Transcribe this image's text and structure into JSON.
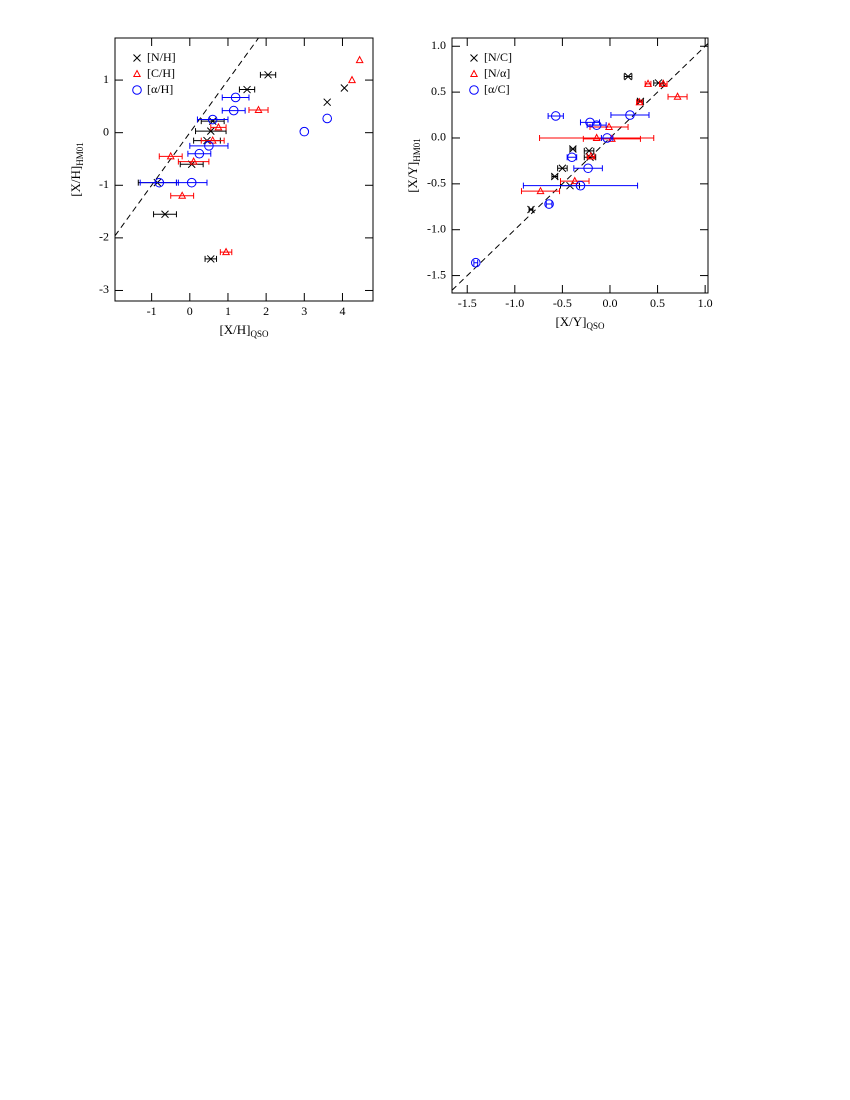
{
  "chart_data": [
    {
      "type": "scatter",
      "xlabel": "[X/H]",
      "xlabel_sub": "QSO",
      "ylabel": "[X/H]",
      "ylabel_sub": "HM01",
      "xlim": [
        -1.96,
        4.8
      ],
      "ylim": [
        -3.2,
        1.8
      ],
      "xticks": [
        -1,
        0,
        1,
        2,
        3,
        4
      ],
      "yticks": [
        -3,
        -2,
        -1,
        0,
        1
      ],
      "diagonal": true,
      "legend": "upper left",
      "series": [
        {
          "name": "[N/H]",
          "color": "#000000",
          "marker": "x",
          "x": [
            2.05,
            1.5,
            3.6,
            4.05,
            0.6,
            0.55,
            0.45,
            0.05,
            -0.85,
            -0.65,
            0.55
          ],
          "y": [
            1.1,
            0.82,
            0.58,
            0.85,
            0.22,
            0.03,
            -0.15,
            -0.6,
            -0.95,
            -1.55,
            -2.4
          ],
          "xerr": [
            0.2,
            0.2,
            0,
            0,
            0.3,
            0.4,
            0.35,
            0.3,
            0.5,
            0.3,
            0.15
          ]
        },
        {
          "name": "[C/H]",
          "color": "#ff0000",
          "marker": "triangle",
          "x": [
            4.45,
            4.25,
            1.8,
            0.75,
            0.6,
            0.1,
            -0.5,
            -0.2,
            0.95
          ],
          "y": [
            1.38,
            1.0,
            0.43,
            0.1,
            -0.15,
            -0.55,
            -0.45,
            -1.2,
            -2.27
          ],
          "xerr": [
            0,
            0,
            0.25,
            0.2,
            0.3,
            0.4,
            0.3,
            0.3,
            0.15
          ]
        },
        {
          "name": "[α/H]",
          "color": "#0000ff",
          "marker": "circle",
          "x": [
            1.2,
            1.15,
            0.6,
            0.5,
            0.25,
            0.05,
            -0.8,
            3.6,
            3.0
          ],
          "y": [
            0.67,
            0.42,
            0.25,
            -0.25,
            -0.4,
            -0.95,
            -0.95,
            0.27,
            0.02
          ],
          "xerr": [
            0.35,
            0.3,
            0.4,
            0.5,
            0.3,
            0.4,
            0.5,
            0,
            0
          ]
        }
      ]
    },
    {
      "type": "scatter",
      "xlabel": "[X/Y]",
      "xlabel_sub": "QSO",
      "ylabel": "[X/Y]",
      "ylabel_sub": "HM01",
      "xlim": [
        -1.66,
        1.03
      ],
      "ylim": [
        -1.69,
        1.09
      ],
      "xticks": [
        -1.5,
        {
          "value": -1.0,
          "label": "-1.0"
        },
        -0.5,
        {
          "value": 0,
          "label": "0.0"
        },
        0.5,
        {
          "value": 1.0,
          "label": "1.0"
        }
      ],
      "yticks": [
        -1.5,
        {
          "value": -1.0,
          "label": "-1.0"
        },
        -0.5,
        {
          "value": 0,
          "label": "0.0"
        },
        0.5,
        {
          "value": 1.0,
          "label": "1.0"
        }
      ],
      "diagonal": true,
      "legend": "upper left",
      "series": [
        {
          "name": "[N/C]",
          "color": "#000000",
          "marker": "x",
          "x": [
            0.19,
            0.51,
            0.32,
            -0.39,
            -0.22,
            -0.21,
            -0.5,
            -0.58,
            -0.83,
            -0.42
          ],
          "y": [
            0.67,
            0.6,
            0.4,
            -0.12,
            -0.14,
            -0.21,
            -0.33,
            -0.42,
            -0.78,
            -0.52
          ],
          "xerr": [
            0.04,
            0.05,
            0.03,
            0.03,
            0.05,
            0.06,
            0.05,
            0.03,
            0.02,
            0.1
          ]
        },
        {
          "name": "[N/α]",
          "color": "#ff0000",
          "marker": "triangle",
          "x": [
            0.4,
            0.56,
            0.71,
            0.31,
            -0.01,
            -0.14,
            0.02,
            -0.2,
            -0.37,
            -0.73
          ],
          "y": [
            0.59,
            0.59,
            0.45,
            0.39,
            0.12,
            0.0,
            -0.01,
            -0.2,
            -0.47,
            -0.58
          ],
          "xerr": [
            0.03,
            0.04,
            0.1,
            0.03,
            0.2,
            0.6,
            0.3,
            0.04,
            0.15,
            0.2
          ]
        },
        {
          "name": "[α/C]",
          "color": "#0000ff",
          "marker": "circle",
          "x": [
            -0.57,
            0.21,
            -0.21,
            -0.14,
            -0.03,
            -0.4,
            -0.23,
            -0.31,
            -0.64,
            -1.41
          ],
          "y": [
            0.24,
            0.25,
            0.17,
            0.14,
            0.0,
            -0.21,
            -0.33,
            -0.52,
            -0.72,
            -1.36
          ],
          "xerr": [
            0.08,
            0.2,
            0.1,
            0.1,
            0.06,
            0.05,
            0.15,
            0.6,
            0.03,
            0.02
          ]
        }
      ]
    }
  ]
}
